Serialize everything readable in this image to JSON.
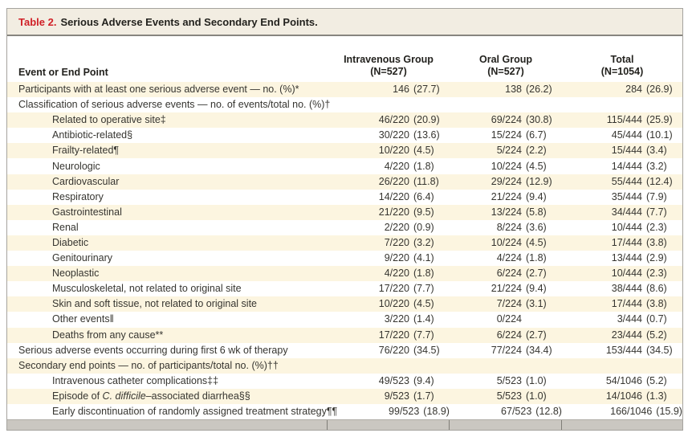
{
  "table": {
    "title_label": "Table 2.",
    "title_text": "Serious Adverse Events and Secondary End Points.",
    "colors": {
      "accent_red": "#d02027",
      "title_bar_bg": "#f2ede2",
      "row_stripe": "#fcf5e0",
      "frame_border": "#a5a39e"
    },
    "columns": {
      "event_header": "Event or End Point",
      "groups": [
        {
          "name": "Intravenous Group",
          "n": "(N=527)"
        },
        {
          "name": "Oral Group",
          "n": "(N=527)"
        },
        {
          "name": "Total",
          "n": "(N=1054)"
        }
      ]
    },
    "rows": [
      {
        "indent": 0,
        "label": "Participants with at least one serious adverse event — no. (%)*",
        "values": [
          "146 (27.7)",
          "138 (26.2)",
          "284 (26.9)"
        ]
      },
      {
        "indent": 0,
        "label": "Classification of serious adverse events — no. of events/total no. (%)†",
        "values": [
          "",
          "",
          ""
        ]
      },
      {
        "indent": 1,
        "label": "Related to operative site‡",
        "values": [
          "46/220 (20.9)",
          "69/224 (30.8)",
          "115/444 (25.9)"
        ]
      },
      {
        "indent": 1,
        "label": "Antibiotic-related§",
        "values": [
          "30/220 (13.6)",
          "15/224 (6.7)",
          "45/444 (10.1)"
        ]
      },
      {
        "indent": 1,
        "label": "Frailty-related¶",
        "values": [
          "10/220 (4.5)",
          "5/224 (2.2)",
          "15/444 (3.4)"
        ]
      },
      {
        "indent": 1,
        "label": "Neurologic",
        "values": [
          "4/220 (1.8)",
          "10/224 (4.5)",
          "14/444 (3.2)"
        ]
      },
      {
        "indent": 1,
        "label": "Cardiovascular",
        "values": [
          "26/220 (11.8)",
          "29/224 (12.9)",
          "55/444 (12.4)"
        ]
      },
      {
        "indent": 1,
        "label": "Respiratory",
        "values": [
          "14/220 (6.4)",
          "21/224 (9.4)",
          "35/444 (7.9)"
        ]
      },
      {
        "indent": 1,
        "label": "Gastrointestinal",
        "values": [
          "21/220 (9.5)",
          "13/224 (5.8)",
          "34/444 (7.7)"
        ]
      },
      {
        "indent": 1,
        "label": "Renal",
        "values": [
          "2/220 (0.9)",
          "8/224 (3.6)",
          "10/444 (2.3)"
        ]
      },
      {
        "indent": 1,
        "label": "Diabetic",
        "values": [
          "7/220 (3.2)",
          "10/224 (4.5)",
          "17/444 (3.8)"
        ]
      },
      {
        "indent": 1,
        "label": "Genitourinary",
        "values": [
          "9/220 (4.1)",
          "4/224 (1.8)",
          "13/444 (2.9)"
        ]
      },
      {
        "indent": 1,
        "label": "Neoplastic",
        "values": [
          "4/220 (1.8)",
          "6/224 (2.7)",
          "10/444 (2.3)"
        ]
      },
      {
        "indent": 1,
        "label": "Musculoskeletal, not related to original site",
        "values": [
          "17/220 (7.7)",
          "21/224 (9.4)",
          "38/444 (8.6)"
        ]
      },
      {
        "indent": 1,
        "label": "Skin and soft tissue, not related to original site",
        "values": [
          "10/220 (4.5)",
          "7/224 (3.1)",
          "17/444 (3.8)"
        ]
      },
      {
        "indent": 1,
        "label": "Other events‖",
        "values": [
          "3/220 (1.4)",
          "0/224",
          "3/444 (0.7)"
        ]
      },
      {
        "indent": 1,
        "label": "Deaths from any cause**",
        "values": [
          "17/220 (7.7)",
          "6/224 (2.7)",
          "23/444 (5.2)"
        ]
      },
      {
        "indent": 0,
        "label": "Serious adverse events occurring during first 6 wk of therapy",
        "values": [
          "76/220 (34.5)",
          "77/224 (34.4)",
          "153/444 (34.5)"
        ]
      },
      {
        "indent": 0,
        "label": "Secondary end points — no. of participants/total no. (%)††",
        "values": [
          "",
          "",
          ""
        ]
      },
      {
        "indent": 1,
        "label": "Intravenous catheter complications‡‡",
        "values": [
          "49/523 (9.4)",
          "5/523 (1.0)",
          "54/1046 (5.2)"
        ]
      },
      {
        "indent": 1,
        "label_parts": [
          {
            "t": "Episode of "
          },
          {
            "t": "C. difficile",
            "italic": true
          },
          {
            "t": "–associated diarrhea§§"
          }
        ],
        "indent_note": "",
        "values": [
          "9/523 (1.7)",
          "5/523 (1.0)",
          "14/1046 (1.3)"
        ]
      },
      {
        "indent": 1,
        "label": "Early discontinuation of randomly assigned treatment strategy¶¶",
        "values": [
          "99/523 (18.9)",
          "67/523 (12.8)",
          "166/1046 (15.9)"
        ]
      }
    ]
  }
}
